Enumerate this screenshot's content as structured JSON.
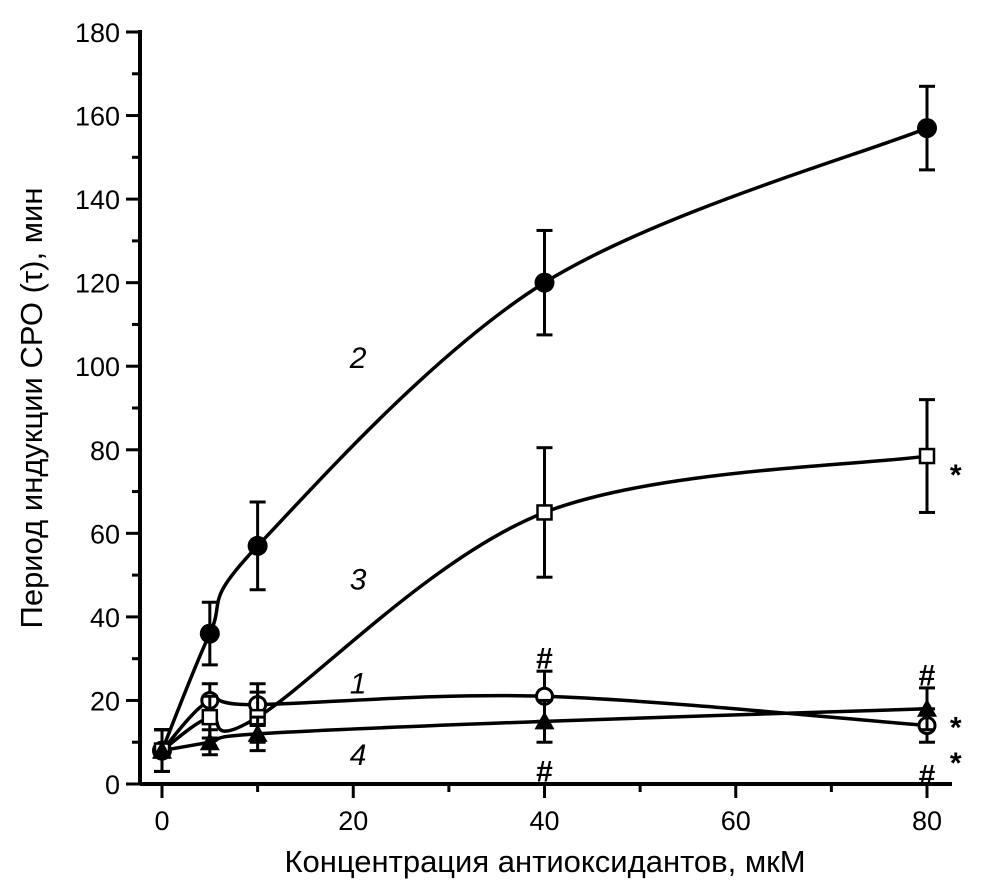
{
  "chart_data": {
    "type": "line",
    "title": "",
    "xlabel": "Концентрация антиоксидантов, мкМ",
    "ylabel": "Период индукции СРО (τ), мин",
    "xlim": [
      -2.5,
      82.5
    ],
    "ylim": [
      0,
      180
    ],
    "xticks": [
      0,
      20,
      40,
      60,
      80
    ],
    "yticks": [
      0,
      20,
      40,
      60,
      80,
      100,
      120,
      140,
      160,
      180
    ],
    "grid": false,
    "x": [
      0,
      5,
      10,
      40,
      80
    ],
    "series": [
      {
        "name": "1",
        "marker": "open-circle",
        "values": [
          8,
          20,
          19,
          21,
          14
        ],
        "errors": [
          5,
          4,
          5,
          6,
          4
        ]
      },
      {
        "name": "2",
        "marker": "filled-circle",
        "values": [
          8,
          36,
          57,
          120,
          157
        ],
        "errors": [
          5,
          7.5,
          10.5,
          12.5,
          10
        ]
      },
      {
        "name": "3",
        "marker": "open-square",
        "values": [
          8,
          16,
          16,
          65,
          78.5
        ],
        "errors": [
          5,
          5,
          6,
          15.5,
          13.5
        ]
      },
      {
        "name": "4",
        "marker": "filled-triangle",
        "values": [
          8,
          10,
          12,
          15,
          18
        ],
        "errors": [
          5,
          3,
          4,
          5,
          5
        ]
      }
    ],
    "annotations": [
      {
        "text": "2",
        "x": 20.5,
        "y": 102,
        "style": "curve-label"
      },
      {
        "text": "3",
        "x": 20.5,
        "y": 49,
        "style": "curve-label"
      },
      {
        "text": "1",
        "x": 20.5,
        "y": 24,
        "style": "curve-label"
      },
      {
        "text": "4",
        "x": 20.5,
        "y": 7,
        "style": "curve-label"
      },
      {
        "text": "#",
        "x": 40,
        "y": 30,
        "style": "mark"
      },
      {
        "text": "#",
        "x": 40,
        "y": 3,
        "style": "mark"
      },
      {
        "text": "#",
        "x": 80,
        "y": 26,
        "style": "mark"
      },
      {
        "text": "#",
        "x": 80,
        "y": 2,
        "style": "mark"
      },
      {
        "text": "*",
        "x": 83,
        "y": 74,
        "style": "mark"
      },
      {
        "text": "*",
        "x": 83,
        "y": 13.5,
        "style": "mark"
      },
      {
        "text": "*",
        "x": 83,
        "y": 5,
        "style": "mark"
      }
    ]
  }
}
